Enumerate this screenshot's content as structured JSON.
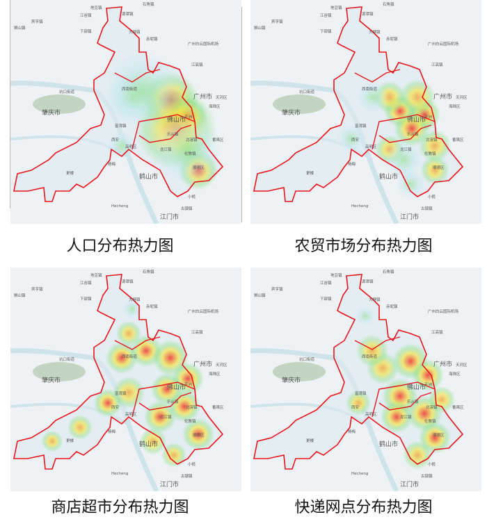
{
  "panels": [
    {
      "caption": "人口分布热力图"
    },
    {
      "caption": "农贸市场分布热力图"
    },
    {
      "caption": "商店超市分布热力图"
    },
    {
      "caption": "快递网点分布热力图"
    }
  ],
  "places": [
    "狮山镇",
    "源潭镇",
    "地豆镇",
    "石角镇",
    "宾亨镇",
    "江谷镇",
    "下部镇",
    "大塘镇",
    "赤坭镇",
    "广州白云国际机场",
    "江高镇",
    "坑口街道",
    "西南街道",
    "肇庆市",
    "广州市",
    "天河区",
    "海珠区",
    "佛山市",
    "平洲",
    "乐从镇",
    "北滘镇",
    "西安",
    "富湾镇",
    "高明区",
    "龙江镇",
    "伦教镇",
    "番禺区",
    "杨梅",
    "顺德区",
    "更楼",
    "鹤山市",
    "小榄",
    "Hecheng",
    "古镇镇",
    "江门市"
  ],
  "colors": {
    "boundary": "#e8141b",
    "heat_high": "#ee3b3b",
    "heat_mid": "#f5e547",
    "heat_low": "#8fe08a",
    "water": "#cfe3ea",
    "green": "#a9bfa2"
  }
}
